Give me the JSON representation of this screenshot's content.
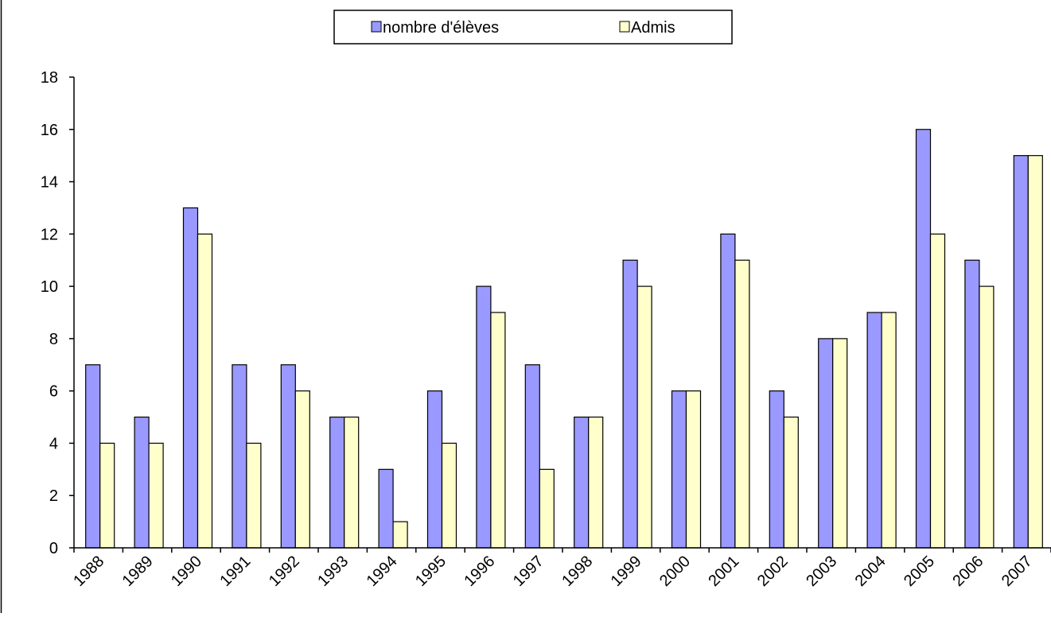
{
  "chart_data": {
    "type": "bar",
    "title": "",
    "xlabel": "",
    "ylabel": "",
    "categories": [
      "1988",
      "1989",
      "1990",
      "1991",
      "1992",
      "1993",
      "1994",
      "1995",
      "1996",
      "1997",
      "1998",
      "1999",
      "2000",
      "2001",
      "2002",
      "2003",
      "2004",
      "2005",
      "2006",
      "2007"
    ],
    "series": [
      {
        "name": "nombre d'élèves",
        "color": "#9999ff",
        "values": [
          7,
          5,
          13,
          7,
          7,
          5,
          3,
          6,
          10,
          7,
          5,
          11,
          6,
          12,
          6,
          8,
          9,
          16,
          11,
          15
        ]
      },
      {
        "name": "Admis",
        "color": "#ffffcc",
        "values": [
          4,
          4,
          12,
          4,
          6,
          5,
          1,
          4,
          9,
          3,
          5,
          10,
          6,
          11,
          5,
          8,
          9,
          12,
          10,
          15
        ]
      }
    ],
    "ylim": [
      0,
      18
    ],
    "yticks": [
      0,
      2,
      4,
      6,
      8,
      10,
      12,
      14,
      16,
      18
    ],
    "grid": false,
    "legend_position": "top-center"
  }
}
